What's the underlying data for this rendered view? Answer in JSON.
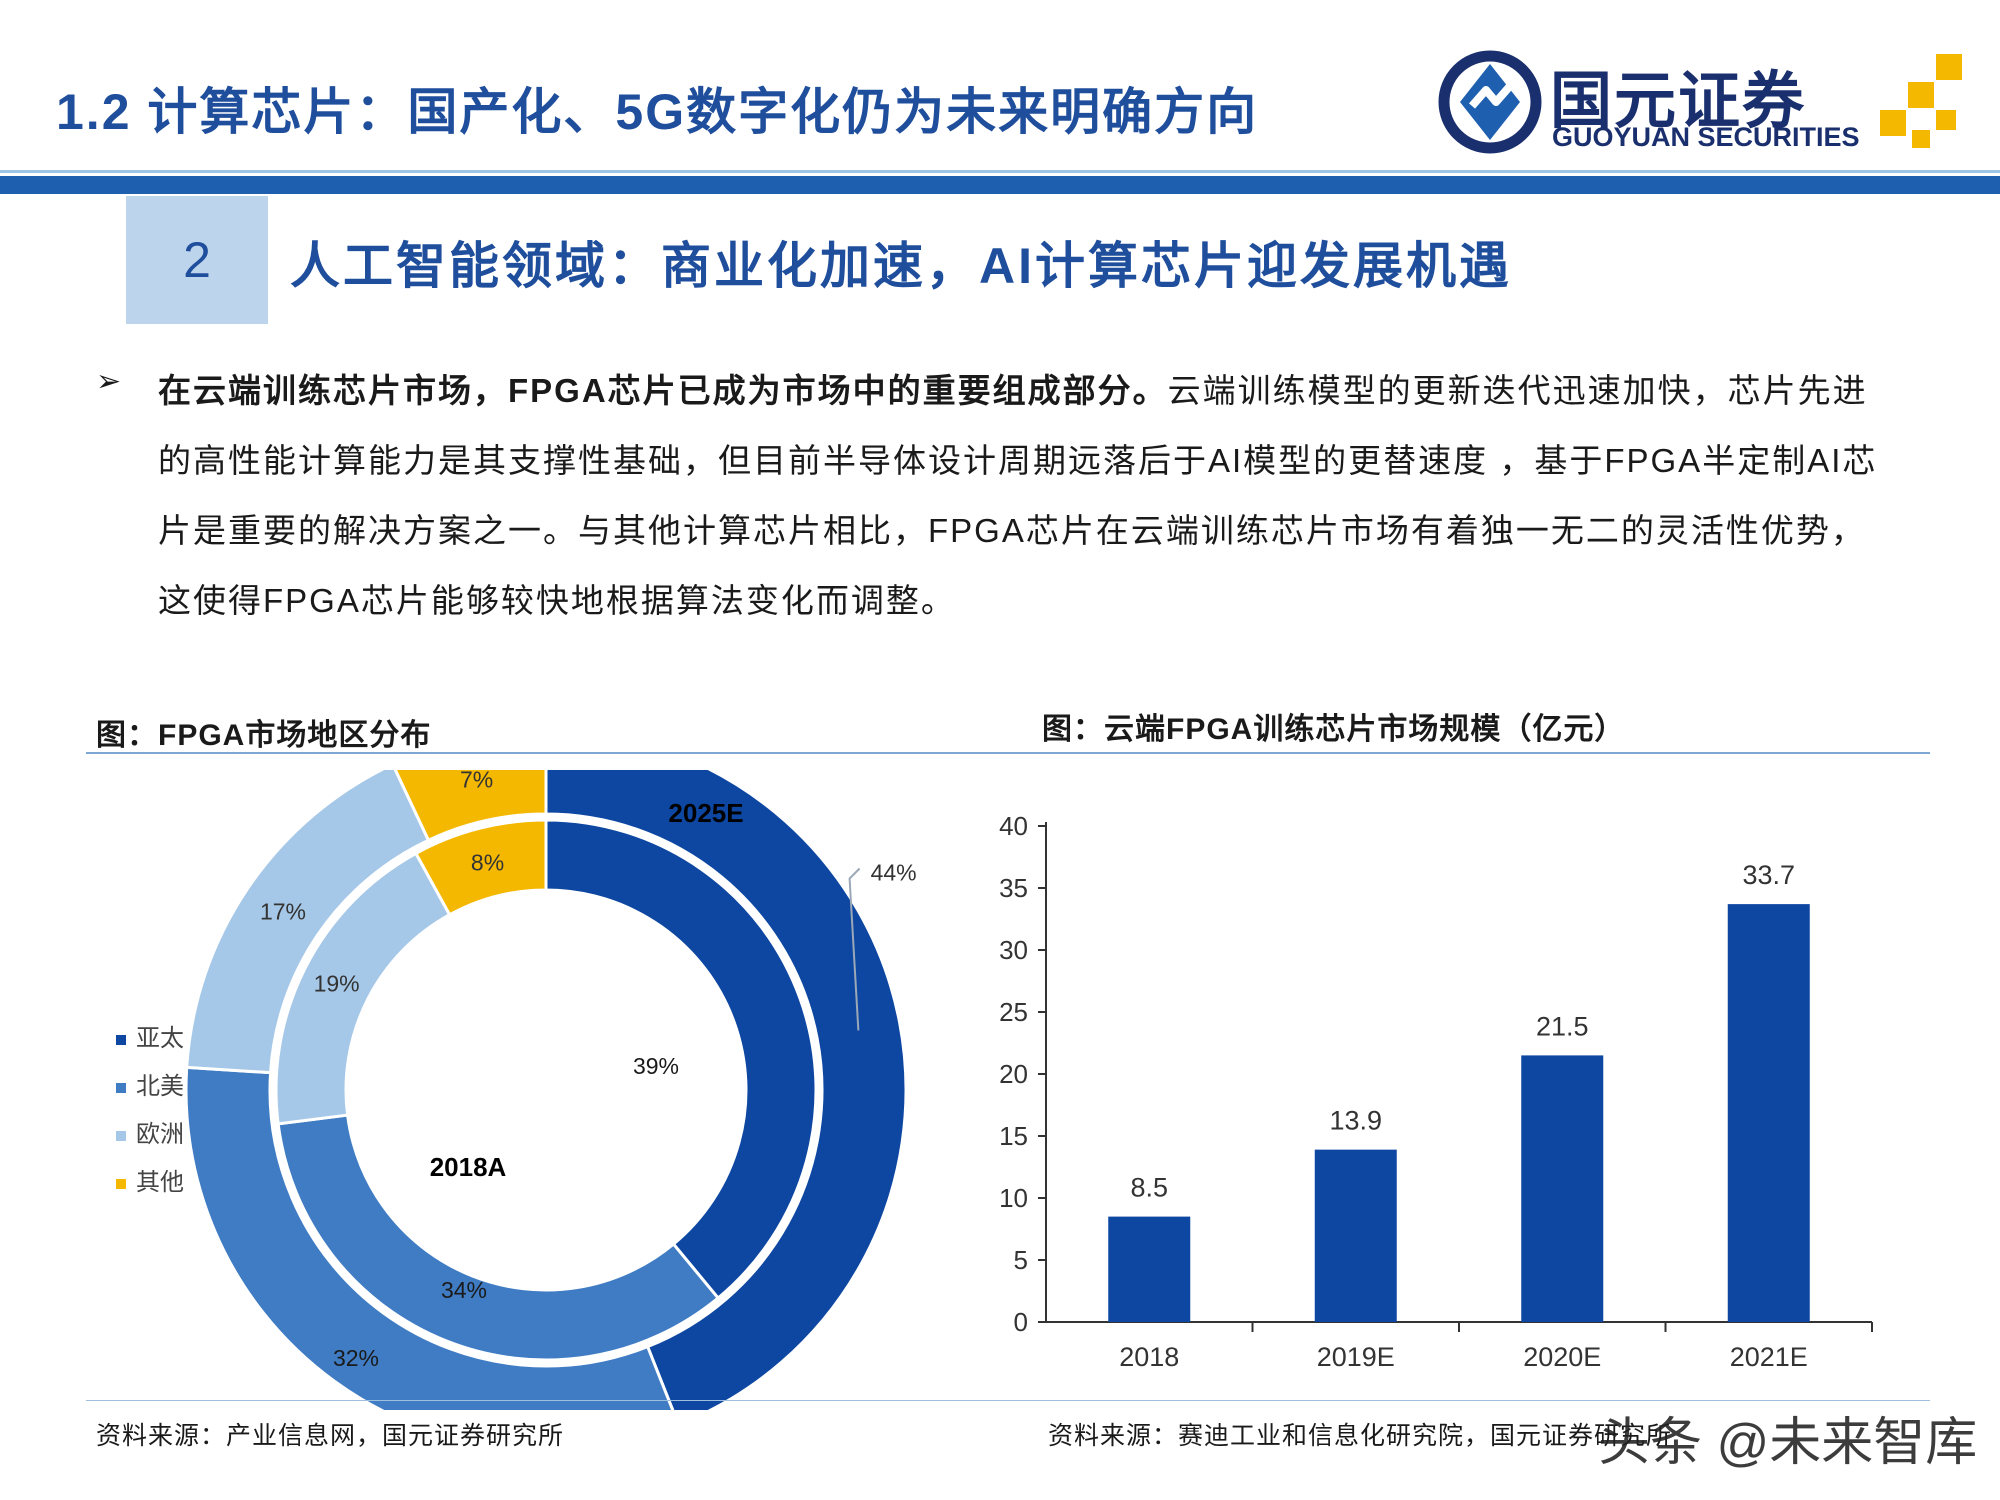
{
  "header": {
    "title": "1.2 计算芯片：国产化、5G数字化仍为未来明确方向",
    "logo_cn": "国元证券",
    "logo_en": "GUOYUAN SECURITIES"
  },
  "section": {
    "number": "2",
    "title": "人工智能领域：商业化加速，AI计算芯片迎发展机遇"
  },
  "bullet": {
    "marker": "➢",
    "bold_text": "在云端训练芯片市场，FPGA芯片已成为市场中的重要组成部分。",
    "text": "云端训练模型的更新迭代迅速加快，芯片先进的高性能计算能力是其支撑性基础，但目前半导体设计周期远落后于AI模型的更替速度 ，基于FPGA半定制AI芯片是重要的解决方案之一。与其他计算芯片相比，FPGA芯片在云端训练芯片市场有着独一无二的灵活性优势，这使得FPGA芯片能够较快地根据算法变化而调整。"
  },
  "left_figure": {
    "caption": "图：FPGA市场地区分布",
    "source": "资料来源：产业信息网，国元证券研究所"
  },
  "right_figure": {
    "caption": "图：云端FPGA训练芯片市场规模（亿元）",
    "source": "资料来源：赛迪工业和信息化研究院，国元证券研究所"
  },
  "watermark": "头条 @未来智库",
  "colors": {
    "asia_pacific": "#0d47a1",
    "north_america": "#3f7cc4",
    "europe": "#a6c8e8",
    "other": "#f5b800",
    "bar": "#0d47a1"
  },
  "chart_data": [
    {
      "type": "pie",
      "variant": "nested-donut",
      "legend_position": "left",
      "categories": [
        "亚太",
        "北美",
        "欧洲",
        "其他"
      ],
      "series": [
        {
          "name": "2018A",
          "ring": "inner",
          "values": [
            39,
            34,
            19,
            8
          ],
          "labels": [
            "39%",
            "34%",
            "19%",
            "8%"
          ]
        },
        {
          "name": "2025E",
          "ring": "outer",
          "values": [
            44,
            32,
            17,
            7
          ],
          "labels": [
            "44%",
            "32%",
            "17%",
            "7%"
          ]
        }
      ]
    },
    {
      "type": "bar",
      "categories": [
        "2018",
        "2019E",
        "2020E",
        "2021E"
      ],
      "values": [
        8.5,
        13.9,
        21.5,
        33.7
      ],
      "value_labels": [
        "8.5",
        "13.9",
        "21.5",
        "33.7"
      ],
      "ylim": [
        0,
        40
      ],
      "yticks": [
        "0",
        "5",
        "10",
        "15",
        "20",
        "25",
        "30",
        "35",
        "40"
      ],
      "grid": false
    }
  ]
}
